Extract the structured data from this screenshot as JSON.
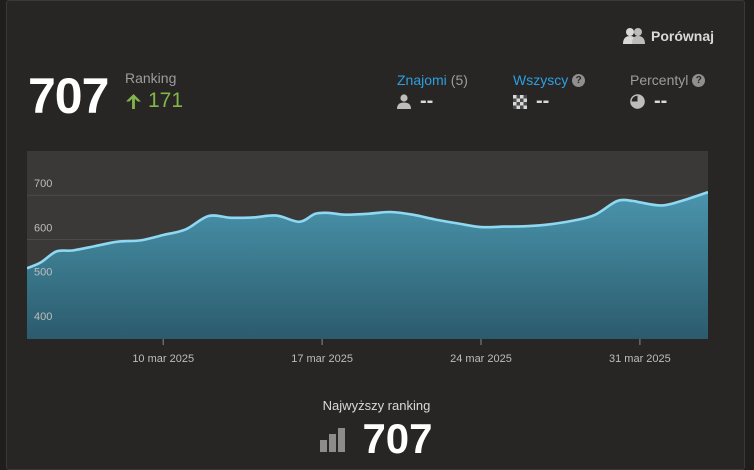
{
  "header": {
    "compare_label": "Porównaj",
    "rating": "707",
    "rank_label": "Ranking",
    "rank_change": "171"
  },
  "stats": {
    "friends": {
      "label": "Znajomi",
      "count": "(5)",
      "value": "--"
    },
    "all": {
      "label": "Wszyscy",
      "value": "--"
    },
    "percentile": {
      "label": "Percentyl",
      "value": "--"
    }
  },
  "chart_data": {
    "type": "area",
    "y_ticks": [
      400,
      500,
      600,
      700
    ],
    "ylim": [
      375,
      800
    ],
    "x_ticks": [
      {
        "label": "10 mar 2025",
        "day": 10
      },
      {
        "label": "17 mar 2025",
        "day": 17
      },
      {
        "label": "24 mar 2025",
        "day": 24
      },
      {
        "label": "31 mar 2025",
        "day": 31
      }
    ],
    "xlim": [
      4,
      34
    ],
    "x": [
      4,
      4.6,
      5.3,
      6,
      7,
      8,
      9,
      10,
      11,
      12,
      13,
      14,
      15,
      16,
      16.7,
      17.3,
      18,
      19,
      20,
      21,
      22,
      23,
      24,
      25,
      26,
      27,
      28,
      29,
      30,
      30.7,
      31,
      32,
      33,
      34
    ],
    "values": [
      535,
      548,
      573,
      575,
      585,
      595,
      598,
      610,
      623,
      653,
      649,
      650,
      654,
      640,
      658,
      660,
      656,
      658,
      662,
      656,
      645,
      636,
      628,
      629,
      630,
      634,
      642,
      655,
      687,
      687,
      684,
      677,
      690,
      707
    ],
    "colors": {
      "line": "#8fd8f3",
      "area_top": "#4a95ad",
      "area_bottom": "#2b5b6c",
      "plot_bg": "#3a3937"
    }
  },
  "peak": {
    "label": "Najwyższy ranking",
    "value": "707"
  }
}
